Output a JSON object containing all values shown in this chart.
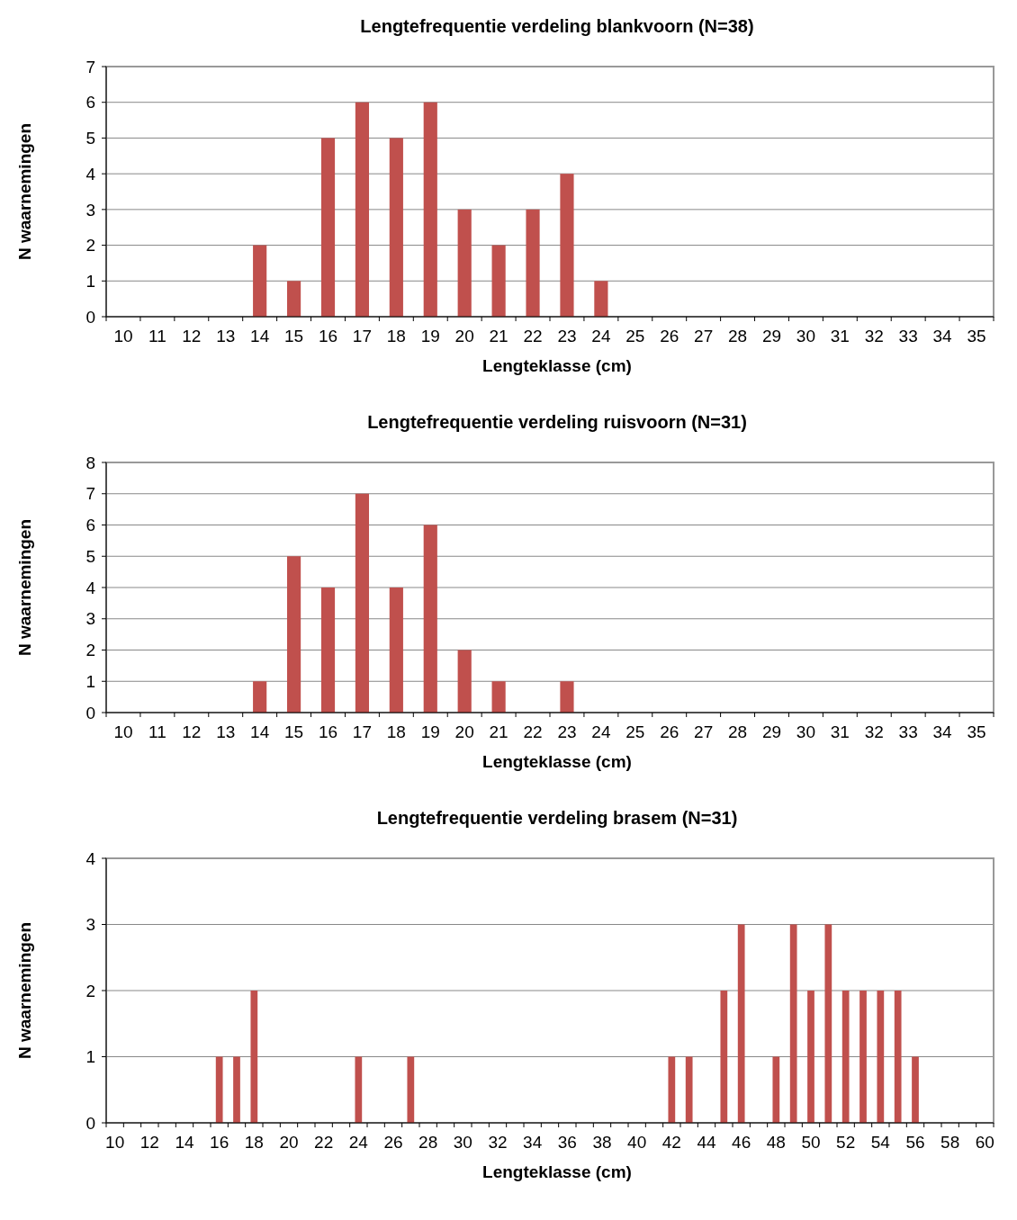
{
  "chart_data": [
    {
      "type": "bar",
      "title": "Lengtefrequentie verdeling  blankvoorn (N=38)",
      "xlabel": "Lengteklasse (cm)",
      "ylabel": "N waarnemingen",
      "categories": [
        "10",
        "11",
        "12",
        "13",
        "14",
        "15",
        "16",
        "17",
        "18",
        "19",
        "20",
        "21",
        "22",
        "23",
        "24",
        "25",
        "26",
        "27",
        "28",
        "29",
        "30",
        "31",
        "32",
        "33",
        "34",
        "35"
      ],
      "values": [
        0,
        0,
        0,
        0,
        2,
        1,
        5,
        6,
        5,
        6,
        3,
        2,
        3,
        4,
        1,
        0,
        0,
        0,
        0,
        0,
        0,
        0,
        0,
        0,
        0,
        0
      ],
      "color": "#c0504d",
      "ylim": [
        0,
        7
      ],
      "yticks": [
        0,
        1,
        2,
        3,
        4,
        5,
        6,
        7
      ],
      "grid": "y"
    },
    {
      "type": "bar",
      "title": "Lengtefrequentie verdeling  ruisvoorn (N=31)",
      "xlabel": "Lengteklasse (cm)",
      "ylabel": "N waarnemingen",
      "categories": [
        "10",
        "11",
        "12",
        "13",
        "14",
        "15",
        "16",
        "17",
        "18",
        "19",
        "20",
        "21",
        "22",
        "23",
        "24",
        "25",
        "26",
        "27",
        "28",
        "29",
        "30",
        "31",
        "32",
        "33",
        "34",
        "35"
      ],
      "values": [
        0,
        0,
        0,
        0,
        1,
        5,
        4,
        7,
        4,
        6,
        2,
        1,
        0,
        1,
        0,
        0,
        0,
        0,
        0,
        0,
        0,
        0,
        0,
        0,
        0,
        0
      ],
      "color": "#c0504d",
      "ylim": [
        0,
        8
      ],
      "yticks": [
        0,
        1,
        2,
        3,
        4,
        5,
        6,
        7,
        8
      ],
      "grid": "y"
    },
    {
      "type": "bar",
      "title": "Lengtefrequentie verdeling  brasem (N=31)",
      "xlabel": "Lengteklasse (cm)",
      "ylabel": "N waarnemingen",
      "categories": [
        "10",
        null,
        "12",
        null,
        "14",
        null,
        "16",
        null,
        "18",
        null,
        "20",
        null,
        "22",
        null,
        "24",
        null,
        "26",
        null,
        "28",
        null,
        "30",
        null,
        "32",
        null,
        "34",
        null,
        "36",
        null,
        "38",
        null,
        "40",
        null,
        "42",
        null,
        "44",
        null,
        "46",
        null,
        "48",
        null,
        "50",
        null,
        "52",
        null,
        "54",
        null,
        "56",
        null,
        "58",
        null,
        "60"
      ],
      "values": [
        0,
        0,
        0,
        0,
        0,
        0,
        1,
        1,
        2,
        0,
        0,
        0,
        0,
        0,
        1,
        0,
        0,
        1,
        0,
        0,
        0,
        0,
        0,
        0,
        0,
        0,
        0,
        0,
        0,
        0,
        0,
        0,
        1,
        1,
        0,
        2,
        3,
        0,
        1,
        3,
        2,
        3,
        2,
        2,
        2,
        2,
        1,
        0,
        0,
        0,
        0
      ],
      "color": "#c0504d",
      "ylim": [
        0,
        4
      ],
      "yticks": [
        0,
        1,
        2,
        3,
        4
      ],
      "grid": "y"
    }
  ]
}
